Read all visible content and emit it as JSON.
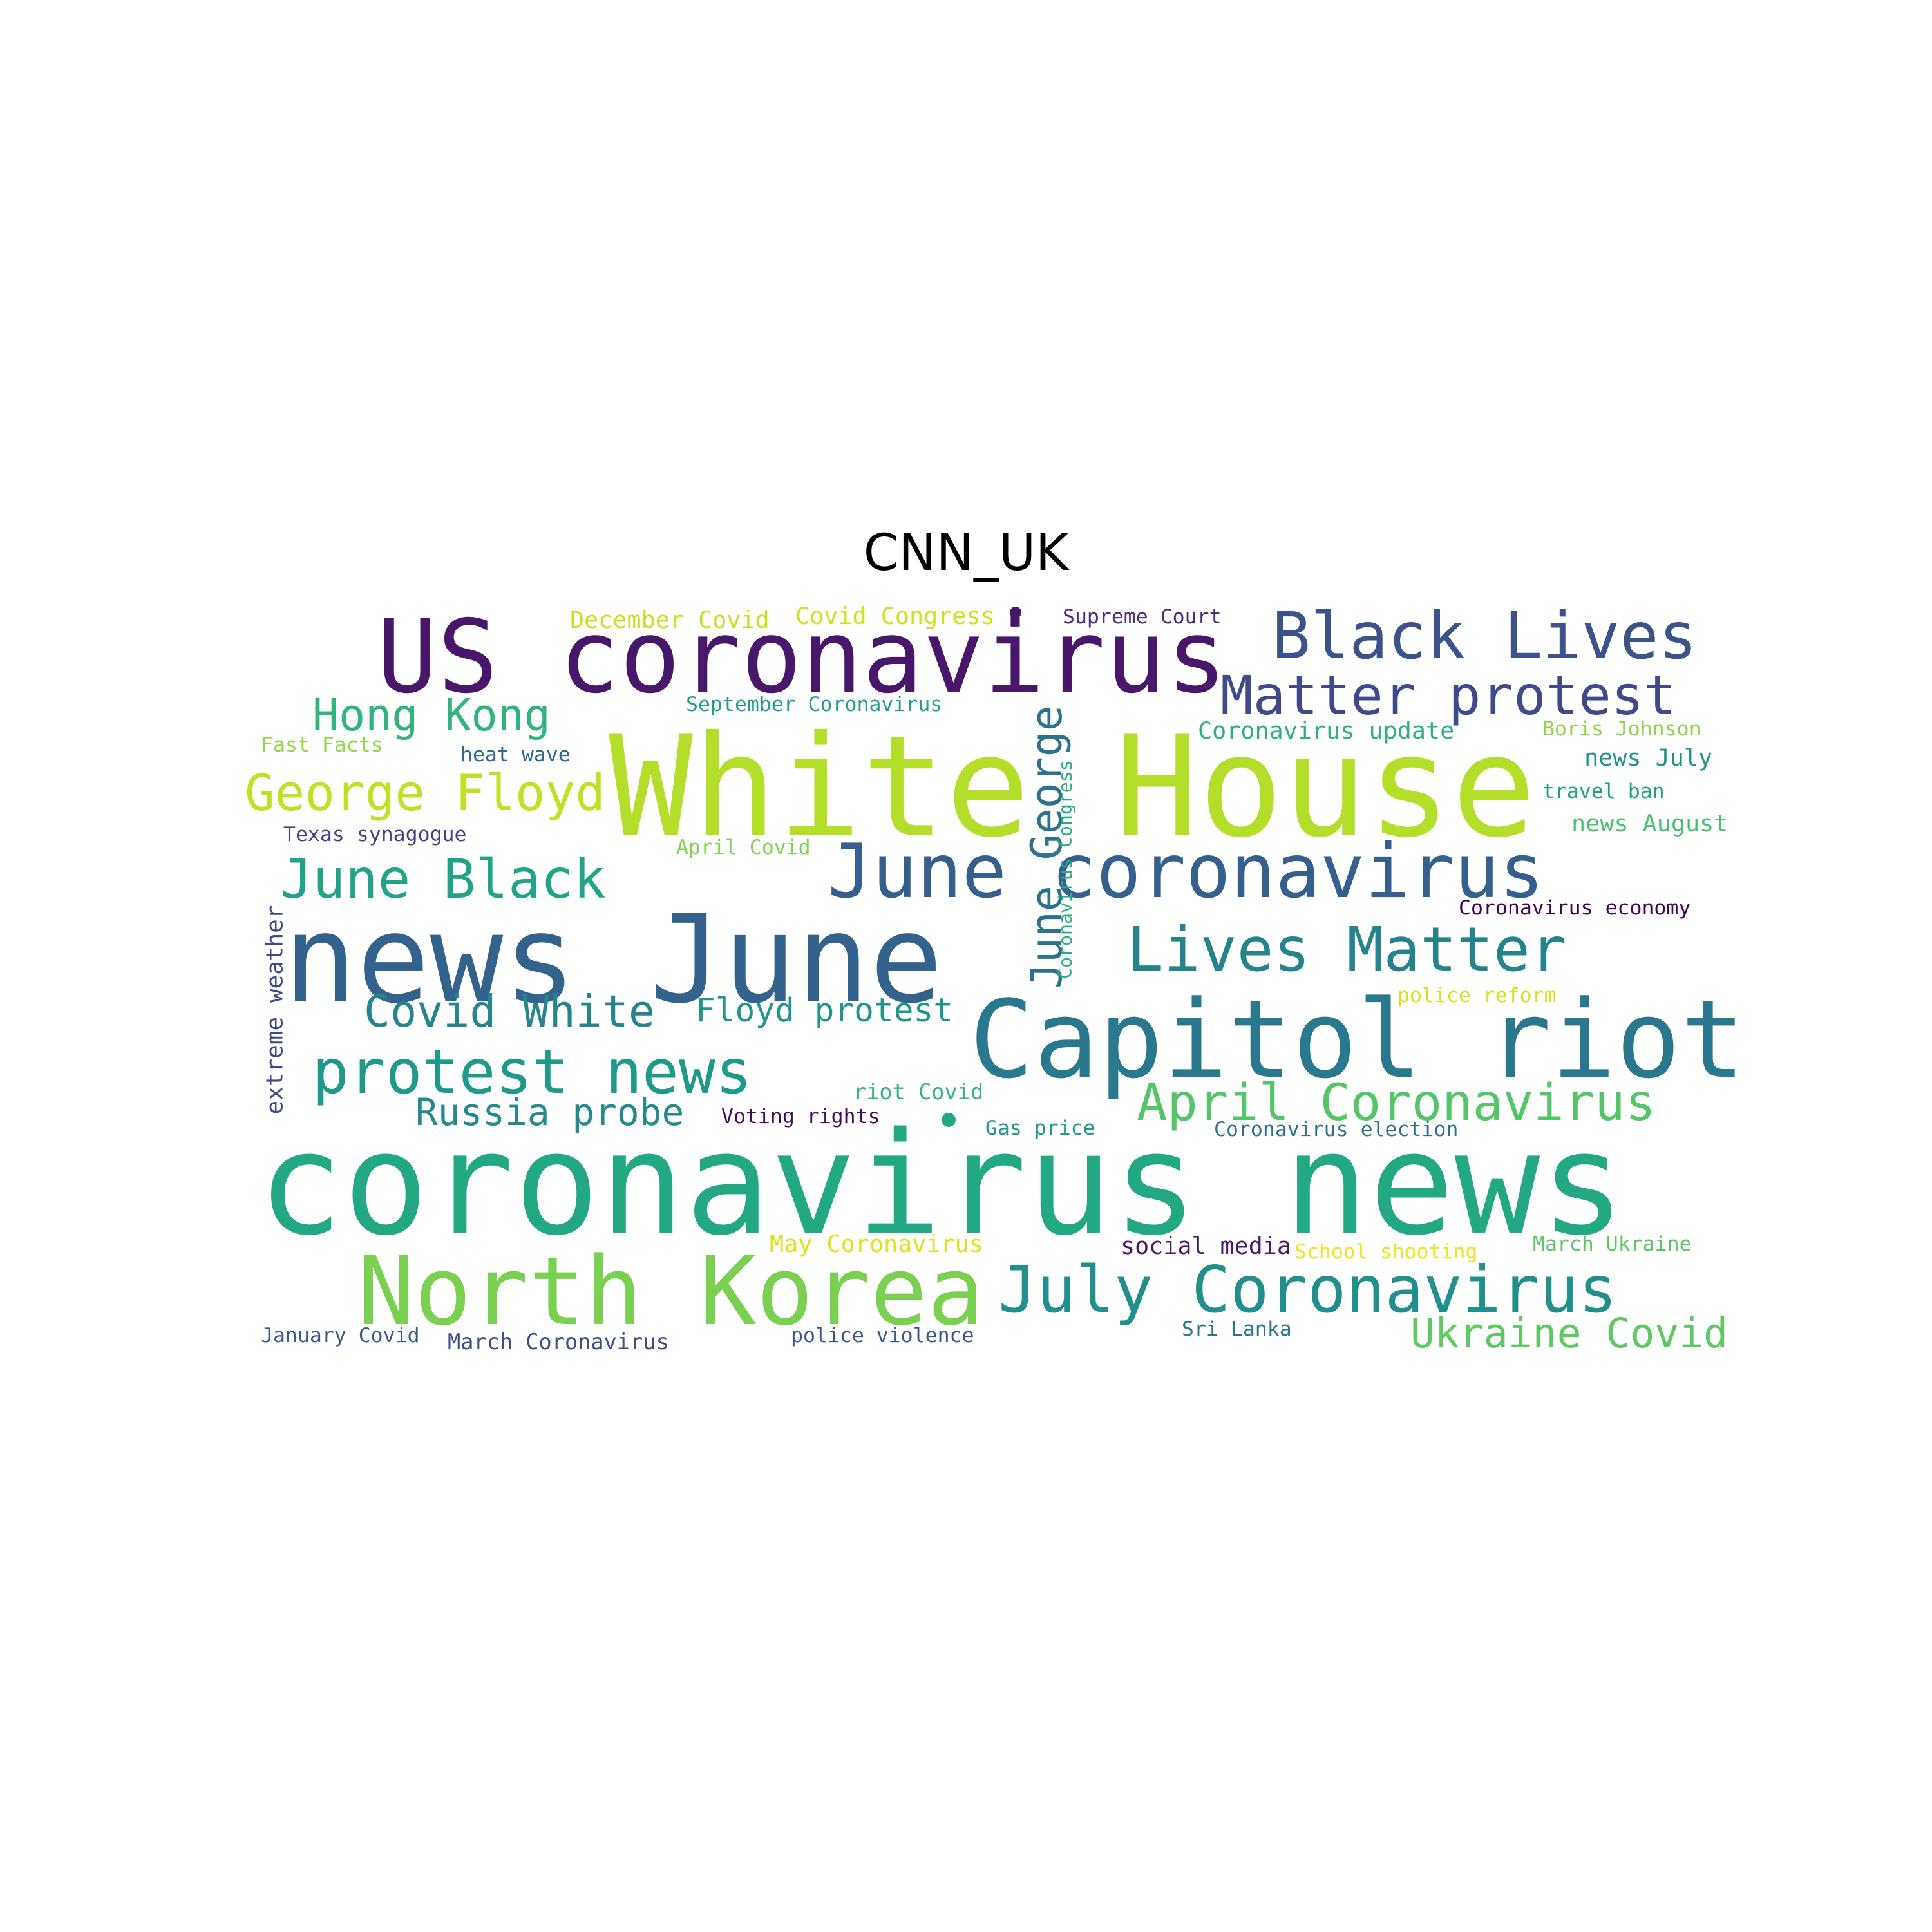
{
  "title": "CNN_UK",
  "words": [
    {
      "text": "coronavirus news",
      "color": "#23a884"
    },
    {
      "text": "White House",
      "color": "#b5de2b"
    },
    {
      "text": "news June",
      "color": "#33638d"
    },
    {
      "text": "US coronavirus",
      "color": "#481769"
    },
    {
      "text": "Capitol riot",
      "color": "#2a788e"
    },
    {
      "text": "North Korea",
      "color": "#7ad151"
    },
    {
      "text": "June coronavirus",
      "color": "#355f8d"
    },
    {
      "text": "July Coronavirus",
      "color": "#21908d"
    },
    {
      "text": "Black Lives",
      "color": "#3b528b"
    },
    {
      "text": "Matter protest",
      "color": "#3e4a89"
    },
    {
      "text": "protest news",
      "color": "#1f9a8a"
    },
    {
      "text": "Lives Matter",
      "color": "#25838e"
    },
    {
      "text": "June Black",
      "color": "#20a386"
    },
    {
      "text": "George Floyd",
      "color": "#c2df23"
    },
    {
      "text": "April Coronavirus",
      "color": "#54c568"
    },
    {
      "text": "Covid White",
      "color": "#25848e"
    },
    {
      "text": "Hong Kong",
      "color": "#2fb47c"
    },
    {
      "text": "Ukraine Covid",
      "color": "#5ec962"
    },
    {
      "text": "Russia probe",
      "color": "#238a8d"
    },
    {
      "text": "Floyd protest",
      "color": "#1f968b"
    },
    {
      "text": "June George",
      "color": "#2c728e"
    },
    {
      "text": "Coronavirus update",
      "color": "#2db27d"
    },
    {
      "text": "September Coronavirus",
      "color": "#1f9e89"
    },
    {
      "text": "December Covid",
      "color": "#c8e020"
    },
    {
      "text": "Covid Congress",
      "color": "#d0e11c"
    },
    {
      "text": "Supreme Court",
      "color": "#472d7b"
    },
    {
      "text": "Fast Facts",
      "color": "#8fd744"
    },
    {
      "text": "heat wave",
      "color": "#31688e"
    },
    {
      "text": "Boris Johnson",
      "color": "#8bd646"
    },
    {
      "text": "news July",
      "color": "#21918c"
    },
    {
      "text": "travel ban",
      "color": "#1fa187"
    },
    {
      "text": "news August",
      "color": "#4ac16d"
    },
    {
      "text": "Texas synagogue",
      "color": "#424086"
    },
    {
      "text": "April Covid",
      "color": "#7fd34e"
    },
    {
      "text": "Coronavirus Congress",
      "color": "#29af7f"
    },
    {
      "text": "Coronavirus economy",
      "color": "#440154"
    },
    {
      "text": "extreme weather",
      "color": "#3f4889"
    },
    {
      "text": "police reform",
      "color": "#d8e219"
    },
    {
      "text": "riot Covid",
      "color": "#35b779"
    },
    {
      "text": "Voting rights",
      "color": "#46085c"
    },
    {
      "text": "Gas price",
      "color": "#1e9b8a"
    },
    {
      "text": "Coronavirus election",
      "color": "#2e6e8e"
    },
    {
      "text": "May Coronavirus",
      "color": "#dde318"
    },
    {
      "text": "social media",
      "color": "#48186a"
    },
    {
      "text": "School shooting",
      "color": "#f1e51d"
    },
    {
      "text": "March Ukraine",
      "color": "#5cc863"
    },
    {
      "text": "January Covid",
      "color": "#38598c"
    },
    {
      "text": "March Coronavirus",
      "color": "#3d4e8a"
    },
    {
      "text": "police violence",
      "color": "#3a538b"
    },
    {
      "text": "Sri Lanka",
      "color": "#2a768e"
    }
  ],
  "dots": [
    {
      "color": "#481769"
    },
    {
      "color": "#23a884"
    }
  ]
}
